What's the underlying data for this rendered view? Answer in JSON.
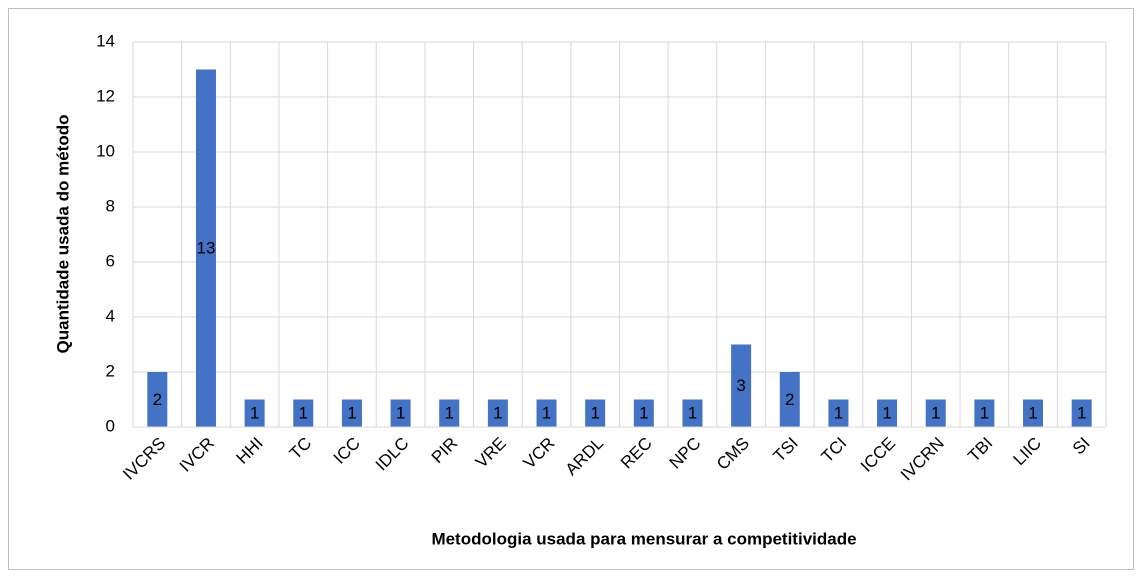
{
  "chart_data": {
    "type": "bar",
    "x_label": "Metodologia usada para mensurar a competitividade",
    "y_label": "Quantidade usada do método",
    "categories": [
      "IVCRS",
      "IVCR",
      "HHI",
      "TC",
      "ICC",
      "IDLC",
      "PIR",
      "VRE",
      "VCR",
      "ARDL",
      "REC",
      "NPC",
      "CMS",
      "TSI",
      "TCI",
      "ICCE",
      "IVCRN",
      "TBI",
      "LIIC",
      "SI"
    ],
    "values": [
      2,
      13,
      1,
      1,
      1,
      1,
      1,
      1,
      1,
      1,
      1,
      1,
      3,
      2,
      1,
      1,
      1,
      1,
      1,
      1
    ],
    "color": "#4472c4",
    "ylim": [
      0,
      14
    ],
    "yticks": [
      0,
      2,
      4,
      6,
      8,
      10,
      12,
      14
    ],
    "grid": true,
    "data_labels": true
  }
}
